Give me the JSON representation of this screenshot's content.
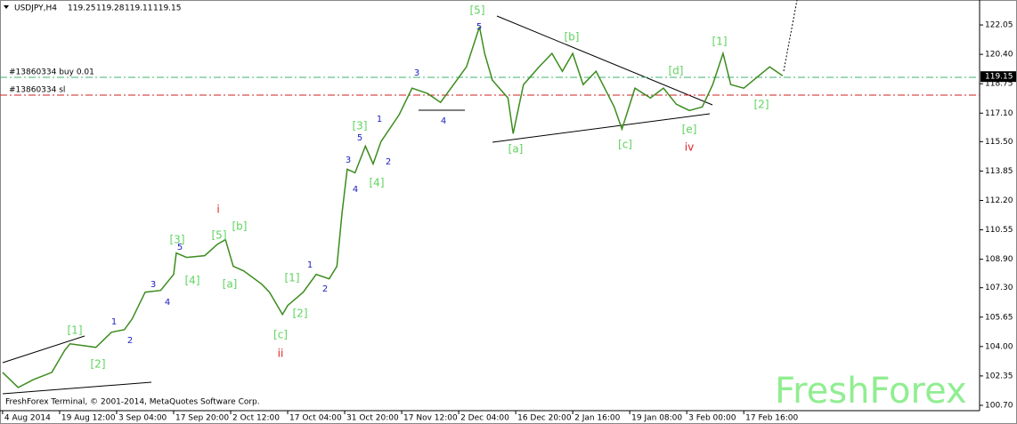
{
  "chart_data": {
    "type": "line",
    "symbol": "USDJPY,H4",
    "ohlc": [
      119.25,
      119.28,
      119.11,
      119.15
    ],
    "copyright": "FreshForex Terminal, © 2001-2014, MetaQuotes Software Corp.",
    "watermark": "FreshForex",
    "xlim": [
      -1,
      377
    ],
    "ylim": [
      100.4,
      123.45
    ],
    "xticks": [
      {
        "value": 0,
        "label": "4 Aug 2014"
      },
      {
        "value": 22,
        "label": "19 Aug 12:00"
      },
      {
        "value": 44,
        "label": "3 Sep 04:00"
      },
      {
        "value": 66,
        "label": "17 Sep 20:00"
      },
      {
        "value": 88,
        "label": "2 Oct 12:00"
      },
      {
        "value": 110,
        "label": "17 Oct 04:00"
      },
      {
        "value": 132,
        "label": "31 Oct 20:00"
      },
      {
        "value": 154,
        "label": "17 Nov 12:00"
      },
      {
        "value": 176,
        "label": "2 Dec 04:00"
      },
      {
        "value": 198,
        "label": "16 Dec 20:00"
      },
      {
        "value": 220,
        "label": "2 Jan 16:00"
      },
      {
        "value": 242,
        "label": "19 Jan 08:00"
      },
      {
        "value": 264,
        "label": "3 Feb 00:00"
      },
      {
        "value": 286,
        "label": "17 Feb 16:00"
      }
    ],
    "yticks": [
      122.05,
      {
        "value": 120.4,
        "label": "120.40"
      },
      118.75,
      {
        "value": 117.1,
        "label": "117.10"
      },
      {
        "value": 115.5,
        "label": "115.50"
      },
      113.85,
      {
        "value": 112.2,
        "label": "112.20"
      },
      110.55,
      {
        "value": 108.9,
        "label": "108.90"
      },
      {
        "value": 107.3,
        "label": "107.30"
      },
      105.65,
      {
        "value": 104,
        "label": "104.00"
      },
      102.35,
      {
        "value": 100.7,
        "label": "100.70"
      }
    ],
    "series": [
      {
        "name": "USDJPY",
        "color": "#3c8c1e",
        "x": [
          0,
          6,
          12,
          19,
          24,
          26,
          31,
          36,
          42,
          47,
          50,
          55,
          61,
          66,
          67,
          71,
          78,
          83,
          86,
          89,
          93,
          100,
          103,
          108,
          110,
          116,
          121,
          126,
          129,
          131,
          133,
          136,
          140,
          143,
          146,
          153,
          158,
          164,
          169,
          174,
          179,
          184,
          186,
          189,
          195,
          197,
          201,
          207,
          212,
          216,
          220,
          224,
          229,
          236,
          239,
          244,
          250,
          255,
          260,
          265,
          270,
          274,
          278,
          281,
          286,
          291,
          296,
          301
        ],
        "values": [
          102.55,
          101.7,
          102.15,
          102.55,
          103.8,
          104.15,
          104.05,
          103.95,
          104.8,
          104.95,
          105.55,
          107.05,
          107.15,
          108.05,
          109.25,
          109.0,
          109.1,
          109.75,
          110.0,
          108.5,
          108.25,
          107.5,
          107.05,
          105.8,
          106.3,
          107.05,
          108.05,
          107.8,
          108.5,
          111.5,
          113.95,
          113.75,
          115.25,
          114.25,
          115.5,
          117.0,
          118.5,
          118.2,
          117.7,
          118.7,
          119.7,
          121.95,
          120.45,
          118.95,
          117.95,
          115.95,
          118.7,
          119.7,
          120.45,
          119.45,
          120.45,
          118.7,
          119.45,
          117.45,
          116.2,
          118.5,
          117.95,
          118.5,
          117.6,
          117.25,
          117.45,
          118.7,
          120.45,
          118.7,
          118.5,
          119.1,
          119.7,
          119.2
        ]
      }
    ],
    "orders": [
      {
        "label": "#13860334 buy 0.01",
        "price": 119.11,
        "color": "#3cb371"
      },
      {
        "label": "#13860334 sl",
        "price": 118.11,
        "color": "#cc2222"
      }
    ],
    "annotations": [
      {
        "text": "[1]",
        "color": "#5fd35f"
      },
      {
        "text": "[2]",
        "color": "#5fd35f"
      },
      {
        "text": "1",
        "color": "#2020c0"
      },
      {
        "text": "2",
        "color": "#2020c0"
      },
      {
        "text": "3",
        "color": "#2020c0"
      },
      {
        "text": "4",
        "color": "#2020c0"
      },
      {
        "text": "[3]",
        "color": "#5fd35f"
      },
      {
        "text": "5",
        "color": "#2020c0"
      },
      {
        "text": "[4]",
        "color": "#5fd35f"
      },
      {
        "text": "[5]",
        "color": "#5fd35f"
      },
      {
        "text": "[b]",
        "color": "#5fd35f"
      },
      {
        "text": "i",
        "color": "#dd2222"
      },
      {
        "text": "[a]",
        "color": "#5fd35f"
      },
      {
        "text": "[c]",
        "color": "#5fd35f"
      },
      {
        "text": "ii",
        "color": "#dd2222"
      },
      {
        "text": "[1]",
        "color": "#5fd35f"
      },
      {
        "text": "1",
        "color": "#2020c0"
      },
      {
        "text": "[2]",
        "color": "#5fd35f"
      },
      {
        "text": "2",
        "color": "#2020c0"
      },
      {
        "text": "3",
        "color": "#2020c0"
      },
      {
        "text": "4",
        "color": "#2020c0"
      },
      {
        "text": "[3]",
        "color": "#5fd35f"
      },
      {
        "text": "5",
        "color": "#2020c0"
      },
      {
        "text": "1",
        "color": "#2020c0"
      },
      {
        "text": "2",
        "color": "#2020c0"
      },
      {
        "text": "[4]",
        "color": "#5fd35f"
      },
      {
        "text": "3",
        "color": "#2020c0"
      },
      {
        "text": "4",
        "color": "#2020c0"
      },
      {
        "text": "[5]",
        "color": "#5fd35f"
      },
      {
        "text": "5",
        "color": "#2020c0"
      },
      {
        "text": "[a]",
        "color": "#5fd35f"
      },
      {
        "text": "[b]",
        "color": "#5fd35f"
      },
      {
        "text": "[c]",
        "color": "#5fd35f"
      },
      {
        "text": "[d]",
        "color": "#5fd35f"
      },
      {
        "text": "[e]",
        "color": "#5fd35f"
      },
      {
        "text": "iv",
        "color": "#dd2222"
      },
      {
        "text": "[1]",
        "color": "#5fd35f"
      },
      {
        "text": "[2]",
        "color": "#5fd35f"
      }
    ]
  }
}
